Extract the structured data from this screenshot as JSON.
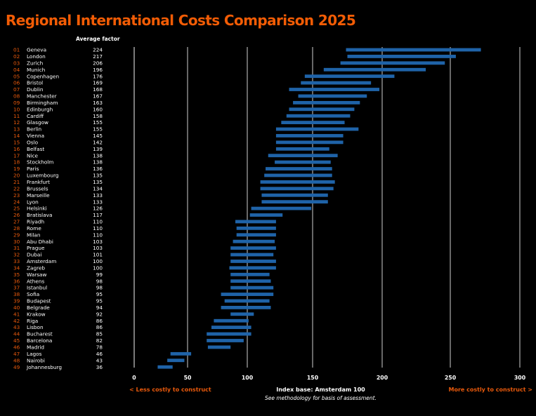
{
  "title": "Regional International Costs Comparison 2025",
  "footer": {
    "less": "< Less costly to construct",
    "more": "More costly to construct >",
    "base": "Index base: Amsterdam 100",
    "note": "See methodology for basis of assessment."
  },
  "colors": {
    "title": "#f25c05",
    "bar": "#1f63a8",
    "rank": "#e8590c",
    "grid": "#a0a0a0"
  },
  "chart_data": {
    "type": "bar",
    "orientation": "horizontal-range",
    "title": "Regional International Costs Comparison 2025",
    "column_header": "Average factor",
    "xticks": [
      0,
      50,
      100,
      150,
      200,
      250,
      300
    ],
    "xlim": [
      0,
      300
    ],
    "grid": true,
    "rows": [
      {
        "rank": "01",
        "city": "Geneva",
        "factor": 224,
        "range": [
          174,
          272
        ]
      },
      {
        "rank": "02",
        "city": "London",
        "factor": 217,
        "range": [
          175,
          254
        ]
      },
      {
        "rank": "03",
        "city": "Zurich",
        "factor": 206,
        "range": [
          170,
          246
        ]
      },
      {
        "rank": "04",
        "city": "Munich",
        "factor": 196,
        "range": [
          158,
          232
        ]
      },
      {
        "rank": "05",
        "city": "Copenhagen",
        "factor": 176,
        "range": [
          144,
          209
        ]
      },
      {
        "rank": "06",
        "city": "Bristol",
        "factor": 169,
        "range": [
          141,
          192
        ]
      },
      {
        "rank": "07",
        "city": "Dublin",
        "factor": 168,
        "range": [
          132,
          198
        ]
      },
      {
        "rank": "08",
        "city": "Manchester",
        "factor": 167,
        "range": [
          139,
          189
        ]
      },
      {
        "rank": "09",
        "city": "Birmingham",
        "factor": 163,
        "range": [
          135,
          184
        ]
      },
      {
        "rank": "10",
        "city": "Edinburgh",
        "factor": 160,
        "range": [
          132,
          180
        ]
      },
      {
        "rank": "11",
        "city": "Cardiff",
        "factor": 158,
        "range": [
          130,
          177
        ]
      },
      {
        "rank": "12",
        "city": "Glasgow",
        "factor": 155,
        "range": [
          126,
          173
        ]
      },
      {
        "rank": "13",
        "city": "Berlin",
        "factor": 155,
        "range": [
          122,
          183
        ]
      },
      {
        "rank": "14",
        "city": "Vienna",
        "factor": 145,
        "range": [
          122,
          172
        ]
      },
      {
        "rank": "15",
        "city": "Oslo",
        "factor": 142,
        "range": [
          122,
          172
        ]
      },
      {
        "rank": "16",
        "city": "Belfast",
        "factor": 139,
        "range": [
          122,
          162
        ]
      },
      {
        "rank": "17",
        "city": "Nice",
        "factor": 138,
        "range": [
          116,
          168
        ]
      },
      {
        "rank": "18",
        "city": "Stockholm",
        "factor": 138,
        "range": [
          121,
          163
        ]
      },
      {
        "rank": "19",
        "city": "Paris",
        "factor": 136,
        "range": [
          114,
          164
        ]
      },
      {
        "rank": "20",
        "city": "Luxembourg",
        "factor": 135,
        "range": [
          113,
          164
        ]
      },
      {
        "rank": "21",
        "city": "Frankfurt",
        "factor": 135,
        "range": [
          110,
          166
        ]
      },
      {
        "rank": "22",
        "city": "Brussels",
        "factor": 134,
        "range": [
          110,
          165
        ]
      },
      {
        "rank": "23",
        "city": "Marseille",
        "factor": 133,
        "range": [
          111,
          161
        ]
      },
      {
        "rank": "24",
        "city": "Lyon",
        "factor": 133,
        "range": [
          111,
          161
        ]
      },
      {
        "rank": "25",
        "city": "Helsinki",
        "factor": 126,
        "range": [
          103,
          149
        ]
      },
      {
        "rank": "26",
        "city": "Bratislava",
        "factor": 117,
        "range": [
          102,
          127
        ]
      },
      {
        "rank": "27",
        "city": "Riyadh",
        "factor": 110,
        "range": [
          90,
          122
        ]
      },
      {
        "rank": "28",
        "city": "Rome",
        "factor": 110,
        "range": [
          91,
          122
        ]
      },
      {
        "rank": "29",
        "city": "Milan",
        "factor": 110,
        "range": [
          91,
          122
        ]
      },
      {
        "rank": "30",
        "city": "Abu Dhabi",
        "factor": 103,
        "range": [
          88,
          121
        ]
      },
      {
        "rank": "31",
        "city": "Prague",
        "factor": 103,
        "range": [
          86,
          122
        ]
      },
      {
        "rank": "32",
        "city": "Dubai",
        "factor": 101,
        "range": [
          86,
          120
        ]
      },
      {
        "rank": "33",
        "city": "Amsterdam",
        "factor": 100,
        "range": [
          86,
          122
        ]
      },
      {
        "rank": "34",
        "city": "Zagreb",
        "factor": 100,
        "range": [
          85,
          122
        ]
      },
      {
        "rank": "35",
        "city": "Warsaw",
        "factor": 99,
        "range": [
          86,
          117
        ]
      },
      {
        "rank": "36",
        "city": "Athens",
        "factor": 98,
        "range": [
          86,
          118
        ]
      },
      {
        "rank": "37",
        "city": "Istanbul",
        "factor": 98,
        "range": [
          86,
          120
        ]
      },
      {
        "rank": "38",
        "city": "Sofia",
        "factor": 95,
        "range": [
          78,
          120
        ]
      },
      {
        "rank": "39",
        "city": "Budapest",
        "factor": 95,
        "range": [
          81,
          117
        ]
      },
      {
        "rank": "40",
        "city": "Belgrade",
        "factor": 94,
        "range": [
          78,
          118
        ]
      },
      {
        "rank": "41",
        "city": "Krakow",
        "factor": 92,
        "range": [
          86,
          105
        ]
      },
      {
        "rank": "42",
        "city": "Riga",
        "factor": 86,
        "range": [
          72,
          101
        ]
      },
      {
        "rank": "43",
        "city": "Lisbon",
        "factor": 86,
        "range": [
          70,
          103
        ]
      },
      {
        "rank": "44",
        "city": "Bucharest",
        "factor": 85,
        "range": [
          66,
          103
        ]
      },
      {
        "rank": "45",
        "city": "Barcelona",
        "factor": 82,
        "range": [
          66,
          97
        ]
      },
      {
        "rank": "46",
        "city": "Madrid",
        "factor": 78,
        "range": [
          67,
          86
        ]
      },
      {
        "rank": "47",
        "city": "Lagos",
        "factor": 46,
        "range": [
          34,
          53
        ]
      },
      {
        "rank": "48",
        "city": "Nairobi",
        "factor": 43,
        "range": [
          31,
          47
        ]
      },
      {
        "rank": "49",
        "city": "Johannesburg",
        "factor": 36,
        "range": [
          22,
          36
        ]
      }
    ]
  }
}
